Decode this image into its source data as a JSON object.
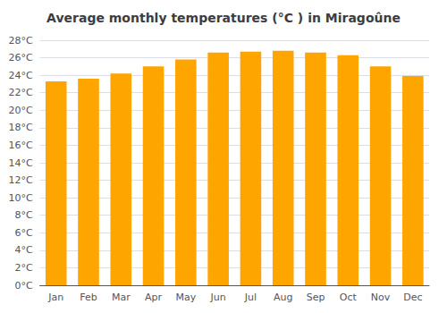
{
  "chart_data": {
    "type": "bar",
    "title": "Average monthly temperatures (°C ) in Miragoûne",
    "categories": [
      "Jan",
      "Feb",
      "Mar",
      "Apr",
      "May",
      "Jun",
      "Jul",
      "Aug",
      "Sep",
      "Oct",
      "Nov",
      "Dec"
    ],
    "values": [
      23.3,
      23.6,
      24.2,
      25.0,
      25.8,
      26.6,
      26.7,
      26.8,
      26.6,
      26.3,
      25.0,
      23.9
    ],
    "color": "#FFA500",
    "ylim": [
      0,
      28
    ],
    "yticks": [
      {
        "value": 0,
        "label": "0°C"
      },
      {
        "value": 2,
        "label": "2°C"
      },
      {
        "value": 4,
        "label": "4°C"
      },
      {
        "value": 6,
        "label": "6°C"
      },
      {
        "value": 8,
        "label": "8°C"
      },
      {
        "value": 10,
        "label": "10°C"
      },
      {
        "value": 12,
        "label": "12°C"
      },
      {
        "value": 14,
        "label": "14°C"
      },
      {
        "value": 16,
        "label": "16°C"
      },
      {
        "value": 18,
        "label": "18°C"
      },
      {
        "value": 20,
        "label": "20°C"
      },
      {
        "value": 22,
        "label": "22°C"
      },
      {
        "value": 24,
        "label": "24°C"
      },
      {
        "value": 26,
        "label": "26°C"
      },
      {
        "value": 28,
        "label": "28°C"
      }
    ],
    "grid": true
  }
}
